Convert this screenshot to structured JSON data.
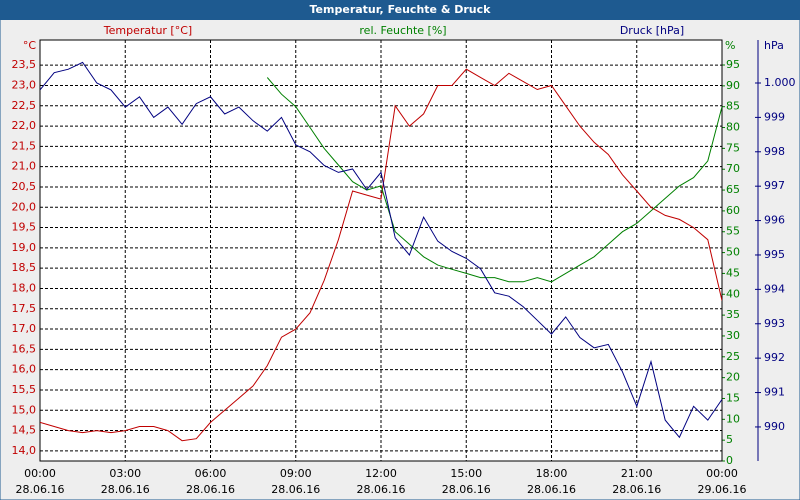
{
  "chart_data": {
    "type": "line",
    "title": "Temperatur, Feuchte & Druck",
    "ylabel": "Temperatur [°C]",
    "y2label": "rel. Feuchte [%]",
    "y3label": "Druck [hPa]",
    "yunit": "°C",
    "y2unit": "%",
    "y3unit": "hPa",
    "x": [
      0,
      0.5,
      1,
      1.5,
      2,
      2.5,
      3,
      3.5,
      4,
      4.5,
      5,
      5.5,
      6,
      6.5,
      7,
      7.5,
      8,
      8.5,
      9,
      9.5,
      10,
      10.5,
      11,
      11.5,
      12,
      12.5,
      13,
      13.5,
      14,
      14.5,
      15,
      15.5,
      16,
      16.5,
      17,
      17.5,
      18,
      18.5,
      19,
      19.5,
      20,
      20.5,
      21,
      21.5,
      22,
      22.5,
      23,
      23.5,
      24
    ],
    "xlim": [
      0,
      24
    ],
    "xticks": [
      {
        "value": 0,
        "label": "00:00"
      },
      {
        "value": 3,
        "label": "03:00"
      },
      {
        "value": 6,
        "label": "06:00"
      },
      {
        "value": 9,
        "label": "09:00"
      },
      {
        "value": 12,
        "label": "12:00"
      },
      {
        "value": 15,
        "label": "15:00"
      },
      {
        "value": 18,
        "label": "18:00"
      },
      {
        "value": 21,
        "label": "21:00"
      },
      {
        "value": 24,
        "label": "00:00"
      }
    ],
    "xtick_dates": [
      "28.06.16",
      "28.06.16",
      "28.06.16",
      "28.06.16",
      "28.06.16",
      "28.06.16",
      "28.06.16",
      "28.06.16",
      "29.06.16"
    ],
    "ylim": [
      13.75,
      24.12
    ],
    "yticks": [
      {
        "value": 14,
        "label": "14,0"
      },
      {
        "value": 14.5,
        "label": "14,5"
      },
      {
        "value": 15,
        "label": "15,0"
      },
      {
        "value": 15.5,
        "label": "15,5"
      },
      {
        "value": 16,
        "label": "16,0"
      },
      {
        "value": 16.5,
        "label": "16,5"
      },
      {
        "value": 17,
        "label": "17,0"
      },
      {
        "value": 17.5,
        "label": "17,5"
      },
      {
        "value": 18,
        "label": "18,0"
      },
      {
        "value": 18.5,
        "label": "18,5"
      },
      {
        "value": 19,
        "label": "19,0"
      },
      {
        "value": 19.5,
        "label": "19,5"
      },
      {
        "value": 20,
        "label": "20,0"
      },
      {
        "value": 20.5,
        "label": "20,5"
      },
      {
        "value": 21,
        "label": "21,0"
      },
      {
        "value": 21.5,
        "label": "21,5"
      },
      {
        "value": 22,
        "label": "22,0"
      },
      {
        "value": 22.5,
        "label": "22,5"
      },
      {
        "value": 23,
        "label": "23,0"
      },
      {
        "value": 23.5,
        "label": "23,5"
      }
    ],
    "y2lim": [
      0,
      101
    ],
    "y2ticks": [
      0,
      5,
      10,
      15,
      20,
      25,
      30,
      35,
      40,
      45,
      50,
      55,
      60,
      65,
      70,
      75,
      80,
      85,
      90,
      95
    ],
    "y3lim": [
      989.01,
      1001.25
    ],
    "y3ticks": [
      990,
      991,
      992,
      993,
      994,
      995,
      996,
      997,
      998,
      999,
      {
        "value": 1000,
        "label": "1.000"
      }
    ],
    "grid": true,
    "series": [
      {
        "name": "Temperatur",
        "color": "#c00000",
        "axis": "y",
        "values": [
          14.7,
          14.6,
          14.5,
          14.45,
          14.5,
          14.45,
          14.5,
          14.6,
          14.6,
          14.5,
          14.25,
          14.3,
          14.7,
          15.0,
          15.3,
          15.6,
          16.1,
          16.8,
          17.0,
          17.4,
          18.2,
          19.2,
          20.4,
          20.3,
          20.2,
          22.5,
          22.0,
          22.3,
          23.0,
          23.0,
          23.4,
          23.2,
          23.0,
          23.3,
          23.1,
          22.9,
          23.0,
          22.5,
          22.0,
          21.6,
          21.3,
          20.8,
          20.4,
          20.0,
          19.8,
          19.7,
          19.5,
          19.2,
          17.7
        ]
      },
      {
        "name": "rel. Feuchte",
        "color": "#008000",
        "axis": "y2",
        "values": [
          null,
          null,
          null,
          null,
          null,
          null,
          null,
          null,
          null,
          null,
          null,
          null,
          null,
          null,
          null,
          null,
          92,
          88,
          85,
          80,
          75,
          71,
          67,
          65,
          66,
          55,
          52,
          49,
          47,
          46,
          45,
          44,
          44,
          43,
          43,
          44,
          43,
          45,
          47,
          49,
          52,
          55,
          57,
          60,
          63,
          66,
          68,
          72,
          85
        ]
      },
      {
        "name": "Druck",
        "color": "#000080",
        "axis": "y3",
        "values": [
          999.8,
          1000.3,
          1000.4,
          1000.6,
          1000.0,
          999.8,
          999.3,
          999.6,
          999.0,
          999.3,
          998.8,
          999.4,
          999.6,
          999.1,
          999.3,
          998.9,
          998.6,
          999.0,
          998.2,
          998.0,
          997.6,
          997.4,
          997.5,
          996.9,
          997.4,
          995.5,
          995.0,
          996.1,
          995.4,
          995.1,
          994.9,
          994.6,
          993.9,
          993.8,
          993.5,
          993.1,
          992.7,
          993.2,
          992.6,
          992.3,
          992.4,
          991.6,
          990.6,
          991.9,
          990.2,
          989.7,
          990.6,
          990.2,
          990.8
        ]
      }
    ]
  }
}
